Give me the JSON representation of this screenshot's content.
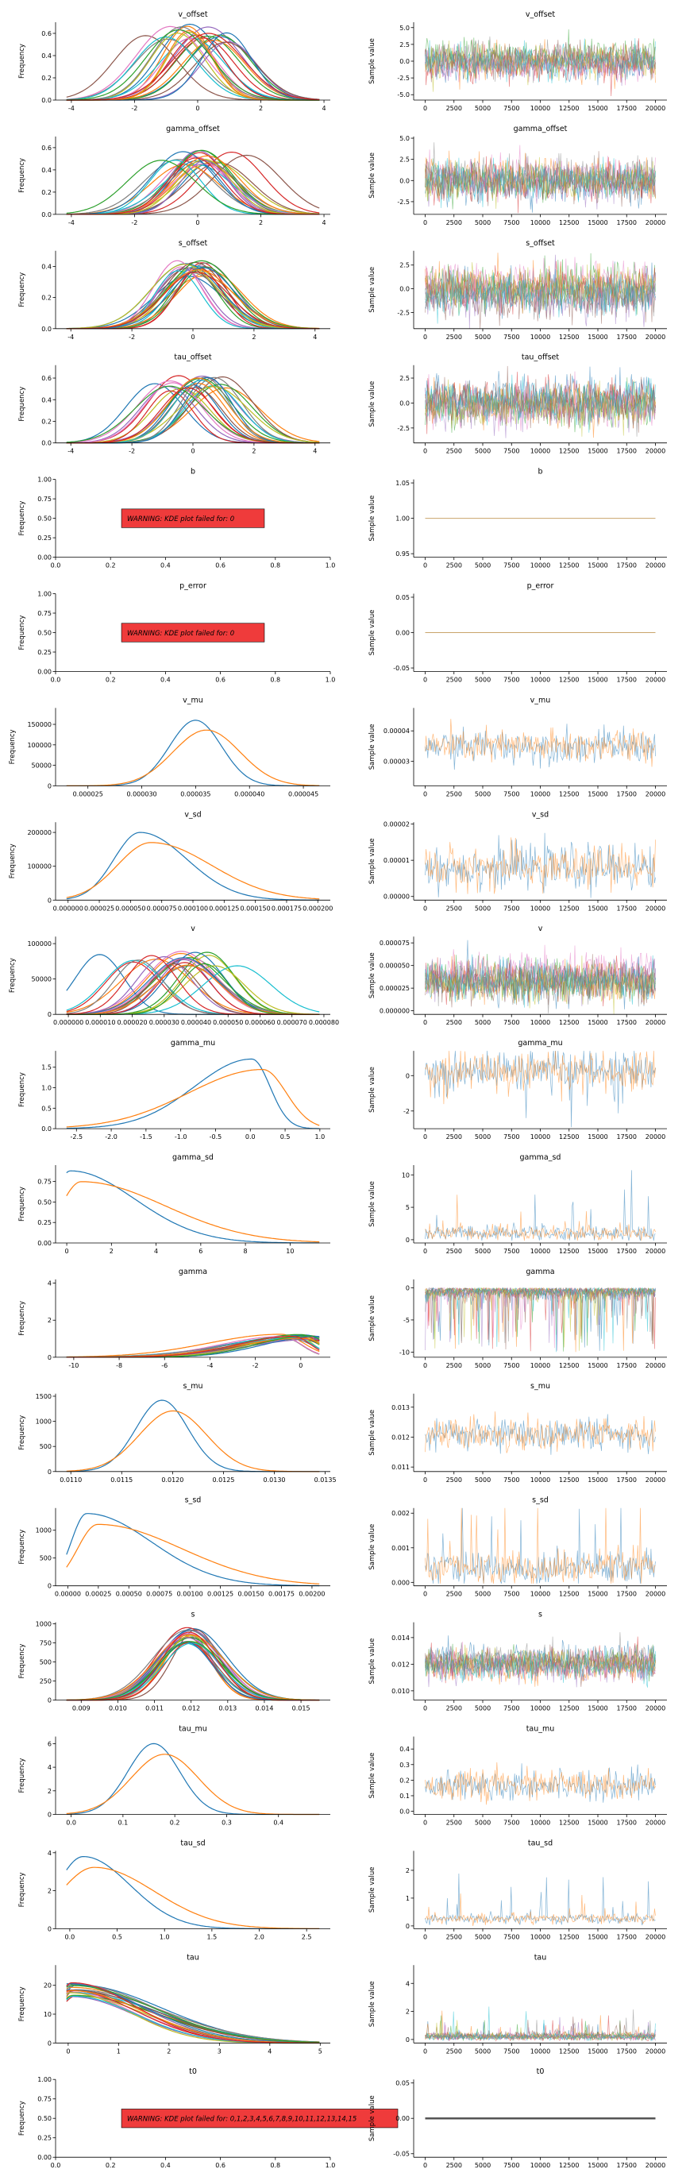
{
  "figure": {
    "kde_ylabel": "Frequency",
    "trace_ylabel": "Sample value",
    "trace_xticks": [
      "0",
      "2500",
      "5000",
      "7500",
      "10000",
      "12500",
      "15000",
      "17500",
      "20000"
    ]
  },
  "chart_data": [
    {
      "variable": "v_offset",
      "title": "v_offset",
      "kde": {
        "type": "line",
        "xlim": [
          -4.5,
          4.2
        ],
        "ylim": [
          0,
          0.7
        ],
        "xticks": [
          "-4",
          "-2",
          "0",
          "2",
          "4"
        ],
        "yticks": [
          "0.0",
          "0.2",
          "0.4",
          "0.6"
        ],
        "n_chains": 24,
        "spread": 0.8,
        "center": 0.0,
        "peak": 0.65,
        "shape": "normal"
      },
      "trace": {
        "type": "line",
        "xlim": [
          -1000,
          21000
        ],
        "ylim": [
          -5.8,
          5.8
        ],
        "yticks": [
          "-5.0",
          "-2.5",
          "0.0",
          "2.5",
          "5.0"
        ],
        "n_chains": 24,
        "center": 0.0,
        "amp": 2.0,
        "style": "noise"
      }
    },
    {
      "variable": "gamma_offset",
      "title": "gamma_offset",
      "kde": {
        "type": "line",
        "xlim": [
          -4.5,
          4.2
        ],
        "ylim": [
          0,
          0.7
        ],
        "xticks": [
          "-4",
          "-2",
          "0",
          "2",
          "4"
        ],
        "yticks": [
          "0.0",
          "0.2",
          "0.4",
          "0.6"
        ],
        "n_chains": 24,
        "spread": 0.6,
        "center": 0.2,
        "peak": 0.55,
        "shape": "normal"
      },
      "trace": {
        "type": "line",
        "xlim": [
          -1000,
          21000
        ],
        "ylim": [
          -4.0,
          5.2
        ],
        "yticks": [
          "-2.5",
          "0.0",
          "2.5",
          "5.0"
        ],
        "n_chains": 24,
        "center": 0.0,
        "amp": 1.8,
        "style": "noise"
      }
    },
    {
      "variable": "s_offset",
      "title": "s_offset",
      "kde": {
        "type": "line",
        "xlim": [
          -4.5,
          4.5
        ],
        "ylim": [
          0,
          0.5
        ],
        "xticks": [
          "-4",
          "-2",
          "0",
          "2",
          "4"
        ],
        "yticks": [
          "0.0",
          "0.2",
          "0.4"
        ],
        "n_chains": 24,
        "spread": 0.35,
        "center": 0.0,
        "peak": 0.42,
        "shape": "normal"
      },
      "trace": {
        "type": "line",
        "xlim": [
          -1000,
          21000
        ],
        "ylim": [
          -4.2,
          4.0
        ],
        "yticks": [
          "-2.5",
          "0.0",
          "2.5"
        ],
        "n_chains": 24,
        "center": 0.0,
        "amp": 1.8,
        "style": "noise"
      }
    },
    {
      "variable": "tau_offset",
      "title": "tau_offset",
      "kde": {
        "type": "line",
        "xlim": [
          -4.5,
          4.5
        ],
        "ylim": [
          0,
          0.72
        ],
        "xticks": [
          "-4",
          "-2",
          "0",
          "2",
          "4"
        ],
        "yticks": [
          "0.0",
          "0.2",
          "0.4",
          "0.6"
        ],
        "n_chains": 24,
        "spread": 0.6,
        "center": 0.0,
        "peak": 0.6,
        "shape": "normal"
      },
      "trace": {
        "type": "line",
        "xlim": [
          -1000,
          21000
        ],
        "ylim": [
          -4.0,
          3.8
        ],
        "yticks": [
          "-2.5",
          "0.0",
          "2.5"
        ],
        "n_chains": 24,
        "center": 0.0,
        "amp": 1.7,
        "style": "noise"
      }
    },
    {
      "variable": "b",
      "title": "b",
      "kde": {
        "type": "line",
        "xlim": [
          0,
          1
        ],
        "ylim": [
          0,
          1
        ],
        "xticks": [
          "0.0",
          "0.2",
          "0.4",
          "0.6",
          "0.8",
          "1.0"
        ],
        "yticks": [
          "0.00",
          "0.25",
          "0.50",
          "0.75",
          "1.00"
        ],
        "warning": "WARNING: KDE plot failed for: 0"
      },
      "trace": {
        "type": "line",
        "xlim": [
          -1000,
          21000
        ],
        "ylim": [
          0.945,
          1.055
        ],
        "yticks": [
          "0.95",
          "1.00",
          "1.05"
        ],
        "n_chains": 1,
        "center": 1.0,
        "amp": 0,
        "style": "flat"
      }
    },
    {
      "variable": "p_error",
      "title": "p_error",
      "kde": {
        "type": "line",
        "xlim": [
          0,
          1
        ],
        "ylim": [
          0,
          1
        ],
        "xticks": [
          "0.0",
          "0.2",
          "0.4",
          "0.6",
          "0.8",
          "1.0"
        ],
        "yticks": [
          "0.00",
          "0.25",
          "0.50",
          "0.75",
          "1.00"
        ],
        "warning": "WARNING: KDE plot failed for: 0"
      },
      "trace": {
        "type": "line",
        "xlim": [
          -1000,
          21000
        ],
        "ylim": [
          -0.055,
          0.055
        ],
        "yticks": [
          "-0.05",
          "0.00",
          "0.05"
        ],
        "n_chains": 1,
        "center": 0.0,
        "amp": 0,
        "style": "flat"
      }
    },
    {
      "variable": "v_mu",
      "title": "v_mu",
      "kde": {
        "type": "line",
        "xlim": [
          2.2e-05,
          4.75e-05
        ],
        "ylim": [
          0,
          190000
        ],
        "xticks": [
          "0.000025",
          "0.000030",
          "0.000035",
          "0.000040",
          "0.000045"
        ],
        "xtick_values": [
          2.5e-05,
          3e-05,
          3.5e-05,
          4e-05,
          4.5e-05
        ],
        "yticks": [
          "0",
          "50000",
          "100000",
          "150000"
        ],
        "ytick_values": [
          0,
          50000,
          100000,
          150000
        ],
        "n_chains": 2,
        "spread": 2e-06,
        "center": 3.55e-05,
        "peak": 160000,
        "shape": "normal"
      },
      "trace": {
        "type": "line",
        "xlim": [
          -1000,
          21000
        ],
        "ylim": [
          2.2e-05,
          4.75e-05
        ],
        "yticks": [
          "0.00003",
          "0.00004"
        ],
        "ytick_values": [
          3e-05,
          4e-05
        ],
        "n_chains": 2,
        "center": 3.5e-05,
        "amp": 4.5e-06,
        "style": "noise"
      }
    },
    {
      "variable": "v_sd",
      "title": "v_sd",
      "kde": {
        "type": "line",
        "xlim": [
          -1e-05,
          0.00021
        ],
        "ylim": [
          0,
          230000
        ],
        "xticks": [
          "0.000000",
          "0.000025",
          "0.000050",
          "0.000075",
          "0.000100",
          "0.000125",
          "0.000150",
          "0.000175",
          "0.000200"
        ],
        "xtick_values": [
          0,
          2.5e-05,
          5e-05,
          7.5e-05,
          0.0001,
          0.000125,
          0.00015,
          0.000175,
          0.0002
        ],
        "yticks": [
          "0",
          "100000",
          "200000"
        ],
        "ytick_values": [
          0,
          100000,
          200000
        ],
        "n_chains": 2,
        "spread": 2e-05,
        "center": 6.2e-05,
        "peak": 200000,
        "shape": "skew"
      },
      "trace": {
        "type": "line",
        "xlim": [
          -1000,
          21000
        ],
        "ylim": [
          -1e-06,
          2.05e-05
        ],
        "yticks": [
          "0.00000",
          "0.00001",
          "0.00002"
        ],
        "ytick_values": [
          0,
          1e-05,
          2e-05
        ],
        "n_chains": 2,
        "center": 8e-06,
        "amp": 5e-06,
        "style": "noise"
      }
    },
    {
      "variable": "v",
      "title": "v",
      "kde": {
        "type": "line",
        "xlim": [
          -4e-06,
          8.2e-05
        ],
        "ylim": [
          0,
          110000
        ],
        "xticks": [
          "0.000000",
          "0.000010",
          "0.000020",
          "0.000030",
          "0.000040",
          "0.000050",
          "0.000060",
          "0.000070",
          "0.000080"
        ],
        "xtick_values": [
          0,
          1e-05,
          2e-05,
          3e-05,
          4e-05,
          5e-05,
          6e-05,
          7e-05,
          8e-05
        ],
        "yticks": [
          "0",
          "50000",
          "100000"
        ],
        "ytick_values": [
          0,
          50000,
          100000
        ],
        "n_chains": 24,
        "spread": 8e-06,
        "center": 3.4e-05,
        "peak": 85000,
        "shape": "normal"
      },
      "trace": {
        "type": "line",
        "xlim": [
          -1000,
          21000
        ],
        "ylim": [
          -4e-06,
          8.2e-05
        ],
        "yticks": [
          "0.000000",
          "0.000025",
          "0.000050",
          "0.000075"
        ],
        "ytick_values": [
          0,
          2.5e-05,
          5e-05,
          7.5e-05
        ],
        "n_chains": 24,
        "center": 3.5e-05,
        "amp": 1.8e-05,
        "style": "noise"
      }
    },
    {
      "variable": "gamma_mu",
      "title": "gamma_mu",
      "kde": {
        "type": "line",
        "xlim": [
          -2.8,
          1.15
        ],
        "ylim": [
          0,
          1.9
        ],
        "xticks": [
          "-2.5",
          "-2.0",
          "-1.5",
          "-1.0",
          "-0.5",
          "0.0",
          "0.5",
          "1.0"
        ],
        "yticks": [
          "0.0",
          "0.5",
          "1.0",
          "1.5"
        ],
        "n_chains": 2,
        "spread": 0.35,
        "center": 0.1,
        "peak": 1.7,
        "shape": "leftskew"
      },
      "trace": {
        "type": "line",
        "xlim": [
          -1000,
          21000
        ],
        "ylim": [
          -3.0,
          1.4
        ],
        "yticks": [
          "-2",
          "0"
        ],
        "ytick_values": [
          -2,
          0
        ],
        "n_chains": 2,
        "center": 0.3,
        "amp": 0.9,
        "style": "spiky_down"
      }
    },
    {
      "variable": "gamma_sd",
      "title": "gamma_sd",
      "kde": {
        "type": "line",
        "xlim": [
          -0.5,
          11.8
        ],
        "ylim": [
          0,
          0.95
        ],
        "xticks": [
          "0",
          "2",
          "4",
          "6",
          "8",
          "10"
        ],
        "yticks": [
          "0.00",
          "0.25",
          "0.50",
          "0.75"
        ],
        "ytick_values": [
          0,
          0.25,
          0.5,
          0.75
        ],
        "n_chains": 2,
        "spread": 0.8,
        "center": 0.4,
        "peak": 0.88,
        "shape": "halfnormal"
      },
      "trace": {
        "type": "line",
        "xlim": [
          -1000,
          21000
        ],
        "ylim": [
          -0.5,
          11.5
        ],
        "yticks": [
          "0",
          "5",
          "10"
        ],
        "n_chains": 2,
        "center": 1.0,
        "amp": 1.0,
        "style": "spiky_up"
      }
    },
    {
      "variable": "gamma",
      "title": "gamma",
      "kde": {
        "type": "line",
        "xlim": [
          -10.8,
          1.3
        ],
        "ylim": [
          0,
          4.2
        ],
        "xticks": [
          "-10",
          "-8",
          "-6",
          "-4",
          "-2",
          "0"
        ],
        "yticks": [
          "0",
          "2",
          "4"
        ],
        "n_chains": 24,
        "spread": 0.4,
        "center": 0.2,
        "peak": 1.2,
        "shape": "leftskew"
      },
      "trace": {
        "type": "line",
        "xlim": [
          -1000,
          21000
        ],
        "ylim": [
          -10.8,
          1.3
        ],
        "yticks": [
          "-10",
          "-5",
          "0"
        ],
        "n_chains": 24,
        "center": 0.0,
        "amp": 1.0,
        "style": "spiky_down_big"
      }
    },
    {
      "variable": "s_mu",
      "title": "s_mu",
      "kde": {
        "type": "line",
        "xlim": [
          0.01085,
          0.01355
        ],
        "ylim": [
          0,
          1550
        ],
        "xticks": [
          "0.0110",
          "0.0115",
          "0.0120",
          "0.0125",
          "0.0130",
          "0.0135"
        ],
        "yticks": [
          "0",
          "500",
          "1000",
          "1500"
        ],
        "n_chains": 2,
        "spread": 0.00028,
        "center": 0.01195,
        "peak": 1420,
        "shape": "normal"
      },
      "trace": {
        "type": "line",
        "xlim": [
          -1000,
          21000
        ],
        "ylim": [
          0.01085,
          0.01345
        ],
        "yticks": [
          "0.011",
          "0.012",
          "0.013"
        ],
        "n_chains": 2,
        "center": 0.0121,
        "amp": 0.00045,
        "style": "noise"
      }
    },
    {
      "variable": "s_sd",
      "title": "s_sd",
      "kde": {
        "type": "line",
        "xlim": [
          -0.0001,
          0.00215
        ],
        "ylim": [
          0,
          1400
        ],
        "xticks": [
          "0.00000",
          "0.00025",
          "0.00050",
          "0.00075",
          "0.00100",
          "0.00125",
          "0.00150",
          "0.00175",
          "0.00200"
        ],
        "xtick_values": [
          0,
          0.00025,
          0.0005,
          0.00075,
          0.001,
          0.00125,
          0.0015,
          0.00175,
          0.002
        ],
        "yticks": [
          "0",
          "500",
          "1000"
        ],
        "n_chains": 2,
        "spread": 0.0003,
        "center": 0.0002,
        "peak": 1300,
        "shape": "halfnormal"
      },
      "trace": {
        "type": "line",
        "xlim": [
          -1000,
          21000
        ],
        "ylim": [
          -0.0001,
          0.00215
        ],
        "yticks": [
          "0.000",
          "0.001",
          "0.002"
        ],
        "ytick_values": [
          0,
          0.001,
          0.002
        ],
        "n_chains": 2,
        "center": 0.0004,
        "amp": 0.0004,
        "style": "spiky_up"
      }
    },
    {
      "variable": "s",
      "title": "s",
      "kde": {
        "type": "line",
        "xlim": [
          0.0083,
          0.0158
        ],
        "ylim": [
          0,
          1020
        ],
        "xticks": [
          "0.009",
          "0.010",
          "0.011",
          "0.012",
          "0.013",
          "0.014",
          "0.015"
        ],
        "yticks": [
          "0",
          "250",
          "500",
          "750",
          "1000"
        ],
        "n_chains": 24,
        "spread": 8e-05,
        "center": 0.01195,
        "peak": 920,
        "shape": "normal"
      },
      "trace": {
        "type": "line",
        "xlim": [
          -1000,
          21000
        ],
        "ylim": [
          0.0093,
          0.01515
        ],
        "yticks": [
          "0.010",
          "0.012",
          "0.014"
        ],
        "ytick_values": [
          0.01,
          0.012,
          0.014
        ],
        "n_chains": 24,
        "center": 0.0121,
        "amp": 0.0009,
        "style": "noise"
      }
    },
    {
      "variable": "tau_mu",
      "title": "tau_mu",
      "kde": {
        "type": "line",
        "xlim": [
          -0.03,
          0.5
        ],
        "ylim": [
          0,
          6.6
        ],
        "xticks": [
          "0.0",
          "0.1",
          "0.2",
          "0.3",
          "0.4"
        ],
        "yticks": [
          "0",
          "2",
          "4",
          "6"
        ],
        "n_chains": 2,
        "spread": 0.02,
        "center": 0.17,
        "peak": 6.0,
        "shape": "normal"
      },
      "trace": {
        "type": "line",
        "xlim": [
          -1000,
          21000
        ],
        "ylim": [
          -0.02,
          0.48
        ],
        "yticks": [
          "0.0",
          "0.1",
          "0.2",
          "0.3",
          "0.4"
        ],
        "n_chains": 2,
        "center": 0.17,
        "amp": 0.08,
        "style": "noise"
      }
    },
    {
      "variable": "tau_sd",
      "title": "tau_sd",
      "kde": {
        "type": "line",
        "xlim": [
          -0.15,
          2.75
        ],
        "ylim": [
          0,
          4.1
        ],
        "xticks": [
          "0.0",
          "0.5",
          "1.0",
          "1.5",
          "2.0",
          "2.5"
        ],
        "yticks": [
          "0",
          "2",
          "4"
        ],
        "n_chains": 2,
        "spread": 0.12,
        "center": 0.2,
        "peak": 3.8,
        "shape": "skew"
      },
      "trace": {
        "type": "line",
        "xlim": [
          -1000,
          21000
        ],
        "ylim": [
          -0.1,
          2.7
        ],
        "yticks": [
          "0",
          "1",
          "2"
        ],
        "n_chains": 2,
        "center": 0.25,
        "amp": 0.15,
        "style": "spiky_up"
      }
    },
    {
      "variable": "tau",
      "title": "tau",
      "kde": {
        "type": "line",
        "xlim": [
          -0.25,
          5.2
        ],
        "ylim": [
          0,
          27
        ],
        "xticks": [
          "0",
          "1",
          "2",
          "3",
          "4",
          "5"
        ],
        "yticks": [
          "0",
          "10",
          "20"
        ],
        "n_chains": 24,
        "spread": 0.05,
        "center": 0.1,
        "peak": 20,
        "shape": "halfnormal"
      },
      "trace": {
        "type": "line",
        "xlim": [
          -1000,
          21000
        ],
        "ylim": [
          -0.25,
          5.3
        ],
        "yticks": [
          "0",
          "2",
          "4"
        ],
        "n_chains": 24,
        "center": 0.2,
        "amp": 0.2,
        "style": "spiky_up"
      }
    },
    {
      "variable": "t0",
      "title": "t0",
      "kde": {
        "type": "line",
        "xlim": [
          0,
          1
        ],
        "ylim": [
          0,
          1
        ],
        "xticks": [
          "0.0",
          "0.2",
          "0.4",
          "0.6",
          "0.8",
          "1.0"
        ],
        "yticks": [
          "0.00",
          "0.25",
          "0.50",
          "0.75",
          "1.00"
        ],
        "warning": "WARNING: KDE plot failed for: 0,1,2,3,4,5,6,7,8,9,10,11,12,13,14,15"
      },
      "trace": {
        "type": "line",
        "xlim": [
          -1000,
          21000
        ],
        "ylim": [
          -0.055,
          0.055
        ],
        "yticks": [
          "-0.05",
          "0.00",
          "0.05"
        ],
        "n_chains": 24,
        "center": 0.0,
        "amp": 0,
        "style": "flat"
      }
    }
  ],
  "palette": [
    "#1f77b4",
    "#ff7f0e",
    "#2ca02c",
    "#d62728",
    "#9467bd",
    "#8c564b",
    "#e377c2",
    "#7f7f7f",
    "#bcbd22",
    "#17becf"
  ],
  "two_chain_palette": [
    "#1f77b4",
    "#ff7f0e"
  ],
  "warning_box_color": "#ef3b3b"
}
